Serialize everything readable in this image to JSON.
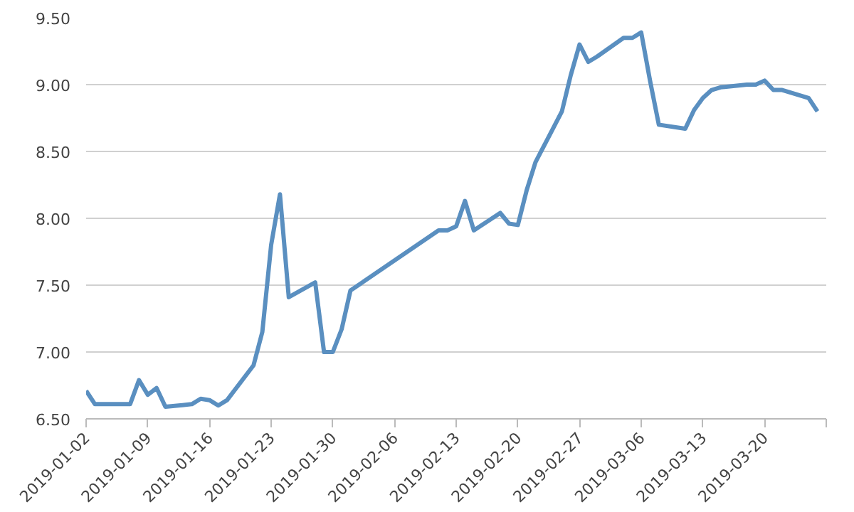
{
  "chart_data": {
    "type": "line",
    "grid": "y",
    "marker": "none",
    "line_style": "solid",
    "x": [
      "2019-01-02",
      "2019-01-03",
      "2019-01-07",
      "2019-01-08",
      "2019-01-09",
      "2019-01-10",
      "2019-01-11",
      "2019-01-14",
      "2019-01-15",
      "2019-01-16",
      "2019-01-17",
      "2019-01-18",
      "2019-01-21",
      "2019-01-22",
      "2019-01-23",
      "2019-01-24",
      "2019-01-25",
      "2019-01-28",
      "2019-01-29",
      "2019-01-30",
      "2019-01-31",
      "2019-02-01",
      "2019-02-11",
      "2019-02-12",
      "2019-02-13",
      "2019-02-14",
      "2019-02-15",
      "2019-02-18",
      "2019-02-19",
      "2019-02-20",
      "2019-02-21",
      "2019-02-22",
      "2019-02-25",
      "2019-02-26",
      "2019-02-27",
      "2019-02-28",
      "2019-03-01",
      "2019-03-04",
      "2019-03-05",
      "2019-03-06",
      "2019-03-07",
      "2019-03-08",
      "2019-03-11",
      "2019-03-12",
      "2019-03-13",
      "2019-03-14",
      "2019-03-15",
      "2019-03-18",
      "2019-03-19",
      "2019-03-20",
      "2019-03-21",
      "2019-03-22",
      "2019-03-25",
      "2019-03-26"
    ],
    "series": [
      {
        "color": "#5a8fc0",
        "values": [
          6.71,
          6.61,
          6.61,
          6.79,
          6.68,
          6.73,
          6.59,
          6.61,
          6.65,
          6.64,
          6.6,
          6.64,
          6.9,
          7.15,
          7.8,
          8.18,
          7.41,
          7.52,
          7.0,
          7.0,
          7.17,
          7.46,
          7.91,
          7.91,
          7.94,
          8.13,
          7.91,
          8.04,
          7.96,
          7.95,
          8.21,
          8.42,
          8.8,
          9.07,
          9.3,
          9.17,
          9.21,
          9.35,
          9.35,
          9.39,
          9.03,
          8.7,
          8.67,
          8.81,
          8.9,
          8.96,
          8.98,
          9.0,
          9.0,
          9.03,
          8.96,
          8.96,
          8.9,
          8.8
        ]
      }
    ],
    "xlim": [
      "2019-01-02",
      "2019-03-27"
    ],
    "xticks": [
      {
        "value": "2019-01-02",
        "label": "2019-01-02"
      },
      {
        "value": "2019-01-09",
        "label": "2019-01-09"
      },
      {
        "value": "2019-01-16",
        "label": "2019-01-16"
      },
      {
        "value": "2019-01-23",
        "label": "2019-01-23"
      },
      {
        "value": "2019-01-30",
        "label": "2019-01-30"
      },
      {
        "value": "2019-02-06",
        "label": "2019-02-06"
      },
      {
        "value": "2019-02-13",
        "label": "2019-02-13"
      },
      {
        "value": "2019-02-20",
        "label": "2019-02-20"
      },
      {
        "value": "2019-02-27",
        "label": "2019-02-27"
      },
      {
        "value": "2019-03-06",
        "label": "2019-03-06"
      },
      {
        "value": "2019-03-13",
        "label": "2019-03-13"
      },
      {
        "value": "2019-03-20",
        "label": "2019-03-20"
      },
      {
        "value": "2019-03-27",
        "label": null
      }
    ],
    "ylim": [
      6.5,
      9.5
    ],
    "yticks": [
      {
        "value": 6.5,
        "label": "6.50"
      },
      {
        "value": 7.0,
        "label": "7.00"
      },
      {
        "value": 7.5,
        "label": "7.50"
      },
      {
        "value": 8.0,
        "label": "8.00"
      },
      {
        "value": 8.5,
        "label": "8.50"
      },
      {
        "value": 9.0,
        "label": "9.00"
      },
      {
        "value": 9.5,
        "label": "9.50"
      }
    ]
  }
}
